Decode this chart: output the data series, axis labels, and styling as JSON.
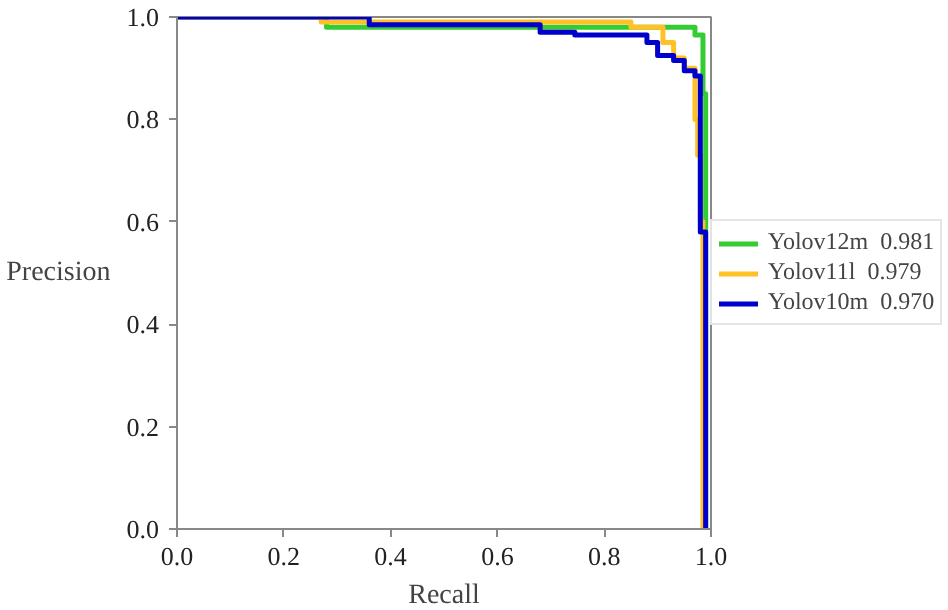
{
  "chart_data": {
    "type": "line",
    "xlabel": "Recall",
    "ylabel": "Precision",
    "xlim": [
      0,
      1
    ],
    "ylim": [
      0,
      1
    ],
    "xticks": [
      {
        "value": 0,
        "label": "0.0"
      },
      0.2,
      0.4,
      0.6,
      0.8,
      {
        "value": 1,
        "label": "1.0"
      }
    ],
    "yticks": [
      {
        "value": 0,
        "label": "0.0"
      },
      0.2,
      0.4,
      0.6,
      0.8,
      {
        "value": 1,
        "label": "1.0"
      }
    ],
    "grid": false,
    "legend": "right",
    "marker": "none",
    "line_style": "solid",
    "series": [
      {
        "name": "Yolov12m  0.981",
        "color": "#33cc33",
        "x": [
          0,
          0.28,
          0.28,
          0.97,
          0.97,
          0.985,
          0.985,
          0.99,
          0.99
        ],
        "values": [
          1,
          1,
          0.98,
          0.98,
          0.965,
          0.965,
          0.85,
          0.85,
          0
        ]
      },
      {
        "name": "Yolov11l  0.979",
        "color": "#ffc125",
        "x": [
          0,
          0.27,
          0.27,
          0.85,
          0.85,
          0.91,
          0.91,
          0.93,
          0.93,
          0.95,
          0.95,
          0.97,
          0.97,
          0.975,
          0.975,
          0.98,
          0.98,
          0.985,
          0.985
        ],
        "values": [
          1,
          1,
          0.99,
          0.99,
          0.98,
          0.98,
          0.95,
          0.95,
          0.92,
          0.92,
          0.9,
          0.9,
          0.8,
          0.8,
          0.73,
          0.73,
          0.6,
          0.6,
          0
        ]
      },
      {
        "name": "Yolov10m  0.970",
        "color": "#0000cc",
        "x": [
          0,
          0.36,
          0.36,
          0.68,
          0.68,
          0.745,
          0.745,
          0.88,
          0.88,
          0.9,
          0.9,
          0.93,
          0.93,
          0.95,
          0.95,
          0.97,
          0.97,
          0.98,
          0.98,
          0.99,
          0.99
        ],
        "values": [
          1,
          1,
          0.985,
          0.985,
          0.97,
          0.97,
          0.965,
          0.965,
          0.95,
          0.95,
          0.925,
          0.925,
          0.915,
          0.915,
          0.895,
          0.895,
          0.885,
          0.885,
          0.58,
          0.58,
          0
        ]
      }
    ]
  }
}
